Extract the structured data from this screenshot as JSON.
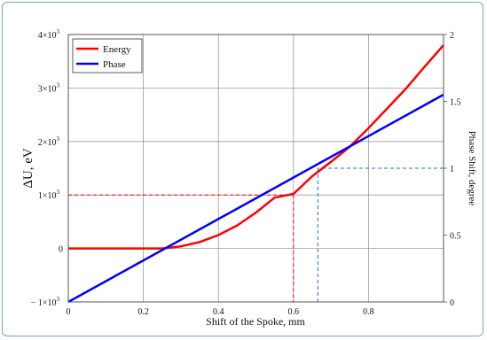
{
  "chart_data": {
    "type": "line",
    "xlabel": "Shift of the Spoke, mm",
    "ylabel_left": "ΔU, eV",
    "ylabel_right": "Phase Shift, degree",
    "xlim": [
      0,
      1
    ],
    "ylim_left": [
      -1000,
      4000
    ],
    "ylim_right": [
      0,
      2
    ],
    "grid": true,
    "legend_position": "top-left",
    "x_ticks": [
      "0",
      "0.2",
      "0.4",
      "0.6",
      "0.8"
    ],
    "y_left_ticks": [
      {
        "value": -1000,
        "base": "− 1×10",
        "exp": "3"
      },
      {
        "value": 0,
        "base": "0",
        "exp": ""
      },
      {
        "value": 1000,
        "base": "1×10",
        "exp": "3"
      },
      {
        "value": 2000,
        "base": "2×10",
        "exp": "3"
      },
      {
        "value": 3000,
        "base": "3×10",
        "exp": "3"
      },
      {
        "value": 4000,
        "base": "4×10",
        "exp": "3"
      }
    ],
    "y_right_ticks": [
      "0",
      "0.5",
      "1",
      "1.5",
      "2"
    ],
    "series": [
      {
        "name": "Energy",
        "axis": "left",
        "color": "#ff0000",
        "x": [
          0,
          0.1,
          0.2,
          0.25,
          0.3,
          0.35,
          0.4,
          0.45,
          0.5,
          0.55,
          0.6,
          0.65,
          0.7,
          0.75,
          0.8,
          0.85,
          0.9,
          0.95,
          1.0
        ],
        "y": [
          0,
          0,
          0,
          0,
          40,
          120,
          250,
          430,
          670,
          950,
          1020,
          1350,
          1620,
          1900,
          2250,
          2620,
          2990,
          3400,
          3800
        ]
      },
      {
        "name": "Phase",
        "axis": "right",
        "color": "#0000ff",
        "x": [
          0,
          1.0
        ],
        "y": [
          0,
          1.55
        ]
      }
    ],
    "guides": [
      {
        "color": "#ff0000",
        "x": 0.6,
        "y_axis": "left",
        "y": 1000
      },
      {
        "color": "#1f6fd0",
        "x": 0.665,
        "y_axis": "right",
        "y": 1.0
      }
    ]
  }
}
